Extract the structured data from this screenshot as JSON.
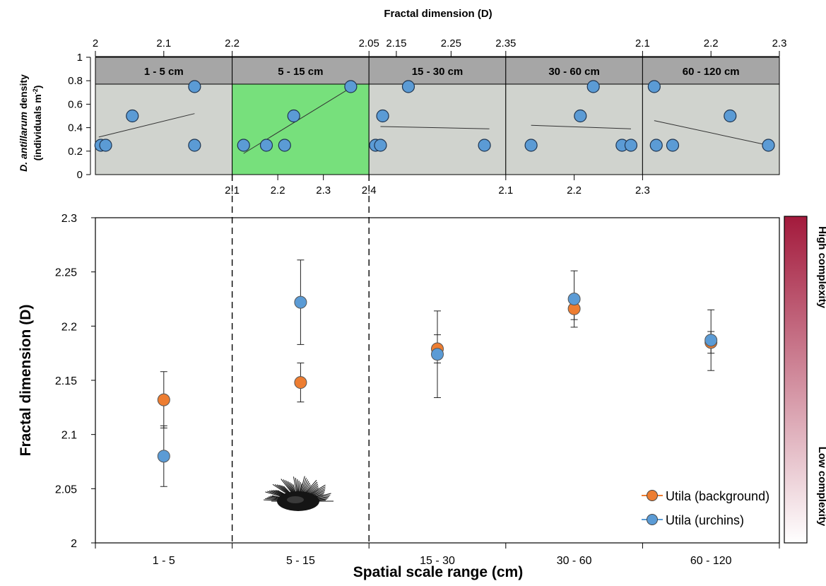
{
  "chart_data": [
    {
      "type": "scatter",
      "title": "Fractal dimension (D)",
      "ylabel_parts": [
        "D. antillarum",
        " density"
      ],
      "ylabel_line2": "(individuals m",
      "ylabel_sup": "-2",
      "ylabel_close": ")",
      "ylim": [
        0,
        1
      ],
      "yticks": [
        "0",
        "0.2",
        "0.4",
        "0.6",
        "0.8",
        "1"
      ],
      "grid": false,
      "panels": [
        {
          "label": "1 - 5 cm",
          "highlight": false,
          "xlim": [
            2.0,
            2.2
          ],
          "top_ticks": [
            "2",
            "2.1",
            "2.2"
          ],
          "top_tick_values": [
            2.0,
            2.1,
            2.2
          ],
          "bottom_ticks": [],
          "bottom_tick_values": [],
          "points": [
            [
              2.008,
              0.25
            ],
            [
              2.015,
              0.25
            ],
            [
              2.054,
              0.5
            ],
            [
              2.145,
              0.75
            ],
            [
              2.145,
              0.25
            ]
          ],
          "trend": [
            [
              2.005,
              0.32
            ],
            [
              2.145,
              0.52
            ]
          ]
        },
        {
          "label": "5 - 15 cm",
          "highlight": true,
          "xlim": [
            2.1,
            2.4
          ],
          "top_ticks": [
            "2.05"
          ],
          "top_tick_values": [
            2.4
          ],
          "bottom_ticks": [
            "2.1",
            "2.2",
            "2.3",
            "2.4"
          ],
          "bottom_tick_values": [
            2.1,
            2.2,
            2.3,
            2.4
          ],
          "points": [
            [
              2.125,
              0.25
            ],
            [
              2.175,
              0.25
            ],
            [
              2.215,
              0.25
            ],
            [
              2.235,
              0.5
            ],
            [
              2.36,
              0.75
            ]
          ],
          "trend": [
            [
              2.125,
              0.18
            ],
            [
              2.36,
              0.74
            ]
          ]
        },
        {
          "label": "15 - 30 cm",
          "highlight": false,
          "xlim": [
            2.1,
            2.35
          ],
          "top_ticks": [
            "2.15",
            "2.25",
            "2.35"
          ],
          "top_tick_values": [
            2.15,
            2.25,
            2.35
          ],
          "bottom_ticks": [
            "2.1"
          ],
          "bottom_tick_values": [
            2.35
          ],
          "points": [
            [
              2.112,
              0.25
            ],
            [
              2.121,
              0.25
            ],
            [
              2.125,
              0.5
            ],
            [
              2.172,
              0.75
            ],
            [
              2.311,
              0.25
            ]
          ],
          "trend": [
            [
              2.121,
              0.41
            ],
            [
              2.32,
              0.39
            ]
          ]
        },
        {
          "label": "30 - 60 cm",
          "highlight": false,
          "xlim": [
            2.1,
            2.3
          ],
          "top_ticks": [
            "2.1"
          ],
          "top_tick_values": [
            2.3
          ],
          "bottom_ticks": [
            "2.2",
            "2.3"
          ],
          "bottom_tick_values": [
            2.2,
            2.3
          ],
          "points": [
            [
              2.137,
              0.25
            ],
            [
              2.209,
              0.5
            ],
            [
              2.228,
              0.75
            ],
            [
              2.27,
              0.25
            ],
            [
              2.283,
              0.25
            ]
          ],
          "trend": [
            [
              2.137,
              0.42
            ],
            [
              2.283,
              0.39
            ]
          ]
        },
        {
          "label": "60 - 120 cm",
          "highlight": false,
          "xlim": [
            2.1,
            2.3
          ],
          "top_ticks": [
            "2.2",
            "2.3"
          ],
          "top_tick_values": [
            2.2,
            2.3
          ],
          "bottom_ticks": [],
          "bottom_tick_values": [],
          "points": [
            [
              2.117,
              0.75
            ],
            [
              2.12,
              0.25
            ],
            [
              2.144,
              0.25
            ],
            [
              2.228,
              0.5
            ],
            [
              2.284,
              0.25
            ]
          ],
          "trend": [
            [
              2.117,
              0.46
            ],
            [
              2.284,
              0.25
            ]
          ]
        }
      ]
    },
    {
      "type": "scatter",
      "xlabel": "Spatial scale range (cm)",
      "ylabel": "Fractal dimension (D)",
      "categories": [
        "1 - 5",
        "5 - 15",
        "15 - 30",
        "30 - 60",
        "60 - 120"
      ],
      "ylim": [
        2.0,
        2.3
      ],
      "yticks": [
        "2",
        "2.05",
        "2.1",
        "2.15",
        "2.2",
        "2.25",
        "2.3"
      ],
      "grid": false,
      "legend_position": "bottom-right",
      "series": [
        {
          "name": "Utila (background)",
          "color": "#ed7d31",
          "values": [
            2.132,
            2.148,
            2.179,
            2.216,
            2.185
          ],
          "errors": [
            0.026,
            0.018,
            0.013,
            0.01,
            0.01
          ]
        },
        {
          "name": "Utila (urchins)",
          "color": "#5b9bd5",
          "values": [
            2.08,
            2.222,
            2.174,
            2.225,
            2.187
          ],
          "errors": [
            0.028,
            0.039,
            0.04,
            0.026,
            0.028
          ]
        }
      ],
      "colorbar": {
        "high_label": "High complexity",
        "low_label": "Low complexity",
        "high_color": "#a31a3c",
        "low_color": "#ffffff"
      }
    }
  ],
  "icons": {
    "urchin": "sea-urchin-icon"
  }
}
